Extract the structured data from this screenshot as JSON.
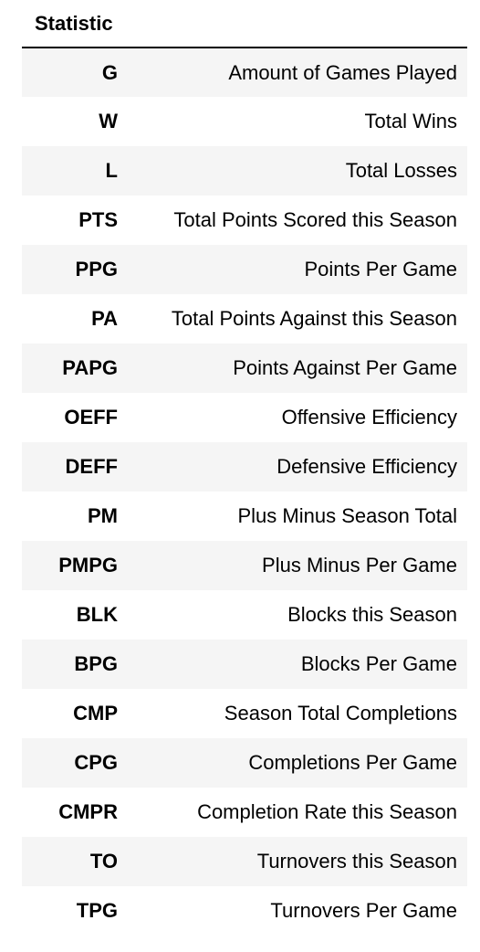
{
  "table": {
    "header": {
      "statistic_label": "Statistic",
      "second_label": ""
    },
    "rows": [
      {
        "key": "G",
        "description": "Amount of Games Played"
      },
      {
        "key": "W",
        "description": "Total Wins"
      },
      {
        "key": "L",
        "description": "Total Losses"
      },
      {
        "key": "PTS",
        "description": "Total Points Scored this Season"
      },
      {
        "key": "PPG",
        "description": "Points Per Game"
      },
      {
        "key": "PA",
        "description": "Total Points Against this Season"
      },
      {
        "key": "PAPG",
        "description": "Points Against Per Game"
      },
      {
        "key": "OEFF",
        "description": "Offensive Efficiency"
      },
      {
        "key": "DEFF",
        "description": "Defensive Efficiency"
      },
      {
        "key": "PM",
        "description": "Plus Minus Season Total"
      },
      {
        "key": "PMPG",
        "description": "Plus Minus Per Game"
      },
      {
        "key": "BLK",
        "description": "Blocks this Season"
      },
      {
        "key": "BPG",
        "description": "Blocks Per Game"
      },
      {
        "key": "CMP",
        "description": "Season Total Completions"
      },
      {
        "key": "CPG",
        "description": "Completions Per Game"
      },
      {
        "key": "CMPR",
        "description": "Completion Rate this Season"
      },
      {
        "key": "TO",
        "description": "Turnovers this Season"
      },
      {
        "key": "TPG",
        "description": "Turnovers Per Game"
      }
    ]
  },
  "colors": {
    "stripe": "#f5f5f5",
    "header_rule": "#000000",
    "text": "#000000"
  }
}
